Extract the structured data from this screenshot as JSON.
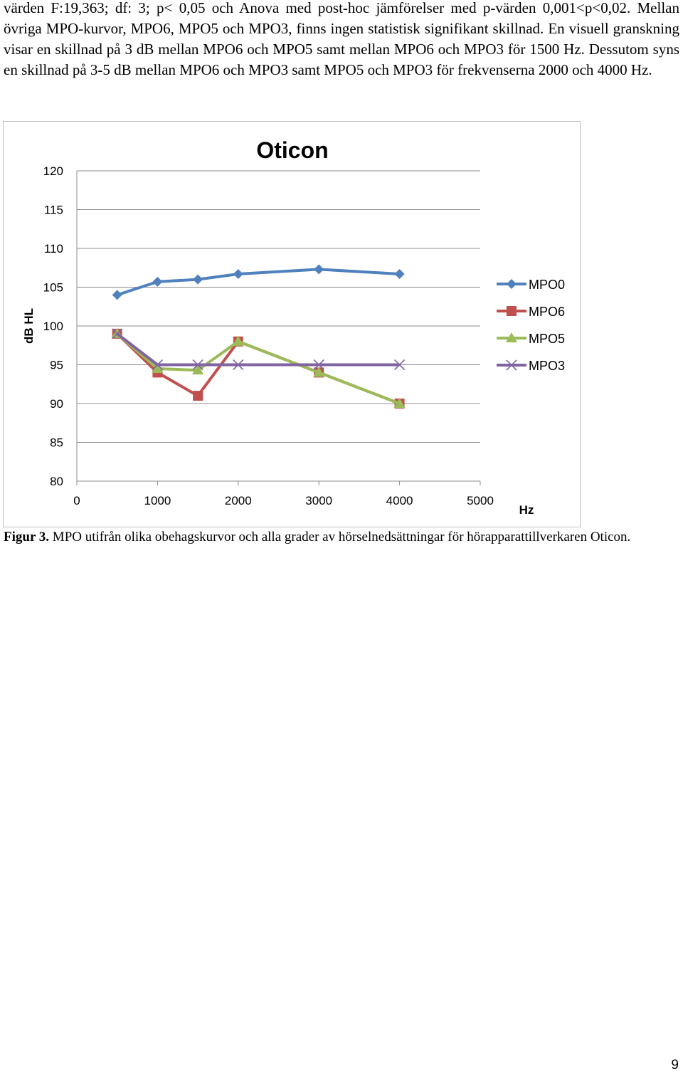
{
  "document": {
    "paragraph": "värden F:19,363; df: 3; p< 0,05 och Anova med post-hoc jämförelser med p-värden 0,001<p<0,02. Mellan övriga MPO-kurvor, MPO6, MPO5 och MPO3, finns ingen statistisk signifikant skillnad. En visuell granskning visar en skillnad på 3 dB mellan MPO6 och MPO5 samt mellan MPO6 och MPO3 för 1500 Hz. Dessutom syns en skillnad på 3-5 dB mellan MPO6 och MPO3 samt MPO5 och MPO3 för frekvenserna 2000 och 4000 Hz.",
    "caption_label": "Figur 3.",
    "caption_text": " MPO utifrån olika obehagskurvor och alla grader av hörselnedsättningar för hörapparattillverkaren Oticon.",
    "page_number": "9"
  },
  "chart_data": {
    "type": "line",
    "title": "Oticon",
    "xlabel": "Hz",
    "ylabel": "dB HL",
    "xlim": [
      0,
      5000
    ],
    "ylim": [
      80,
      120
    ],
    "x_ticks": [
      0,
      1000,
      2000,
      3000,
      4000,
      5000
    ],
    "y_ticks": [
      80,
      85,
      90,
      95,
      100,
      105,
      110,
      115,
      120
    ],
    "grid": "horizontal",
    "legend_position": "right",
    "x": [
      500,
      1000,
      1500,
      2000,
      3000,
      4000
    ],
    "series": [
      {
        "name": "MPO0",
        "color": "#4f81bd",
        "marker": "diamond",
        "values": [
          104.0,
          105.7,
          106.0,
          106.7,
          107.3,
          106.7
        ]
      },
      {
        "name": "MPO6",
        "color": "#c0504d",
        "marker": "square",
        "values": [
          99.0,
          94.0,
          91.0,
          98.0,
          94.0,
          90.0
        ]
      },
      {
        "name": "MPO5",
        "color": "#9bbb59",
        "marker": "triangle",
        "values": [
          99.0,
          94.5,
          94.3,
          98.0,
          94.0,
          90.0
        ]
      },
      {
        "name": "MPO3",
        "color": "#8064a2",
        "marker": "x",
        "values": [
          99.0,
          95.0,
          95.0,
          95.0,
          95.0,
          95.0
        ]
      }
    ]
  }
}
